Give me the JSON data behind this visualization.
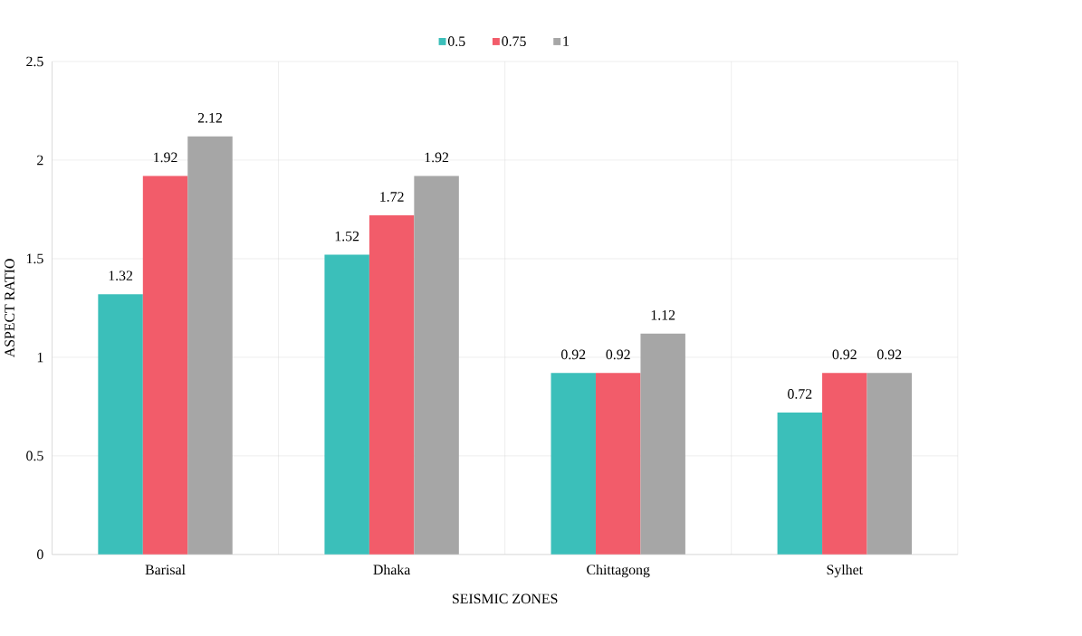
{
  "chart_data": {
    "type": "bar",
    "xlabel": "SEISMIC ZONES",
    "ylabel": "ASPECT RATIO",
    "categories": [
      "Barisal",
      "Dhaka",
      "Chittagong",
      "Sylhet"
    ],
    "series": [
      {
        "name": "0.5",
        "color": "#3bbfba",
        "values": [
          1.32,
          1.52,
          0.92,
          0.72
        ]
      },
      {
        "name": "0.75",
        "color": "#f25c6a",
        "values": [
          1.92,
          1.72,
          0.92,
          0.92
        ]
      },
      {
        "name": "1",
        "color": "#a6a6a6",
        "values": [
          2.12,
          1.92,
          1.12,
          0.92
        ]
      }
    ],
    "ylim": [
      0,
      2.5
    ],
    "yticks": [
      0,
      0.5,
      1,
      1.5,
      2,
      2.5
    ],
    "grid": true,
    "legend": "top",
    "data_labels": true
  }
}
